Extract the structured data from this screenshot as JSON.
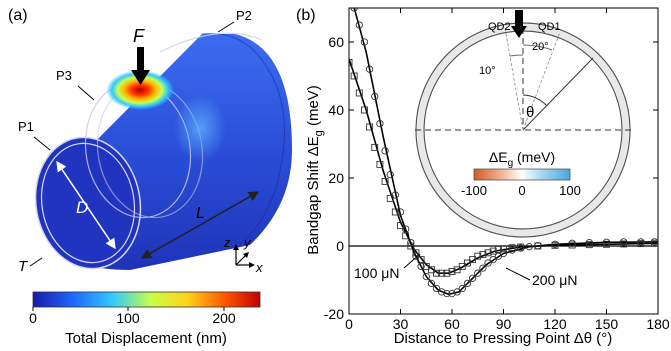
{
  "panel_a": {
    "label": "(a)",
    "force_label": "F",
    "path_labels": [
      "P1",
      "P2",
      "P3"
    ],
    "diameter_label": "D",
    "length_label": "L",
    "thickness_label": "T",
    "axes": {
      "z": "z",
      "y": "y",
      "x": "x"
    },
    "colorbar": {
      "ticks": [
        "0",
        "100",
        "200"
      ],
      "title": "Total Displacement (nm)",
      "colors": [
        "#1a1aa8",
        "#1e64ff",
        "#31c9ff",
        "#c8ff47",
        "#ffd21a",
        "#ff5a00",
        "#c40000"
      ]
    }
  },
  "panel_b": {
    "label": "(b)",
    "inset": {
      "qd_labels": [
        "QD2",
        "QD1"
      ],
      "angle_labels": [
        "20°",
        "10°",
        "θ"
      ],
      "legend_title_main": "ΔE",
      "legend_title_sub": "g",
      "legend_title_unit": " (meV)",
      "legend_ticks": [
        "-100",
        "0",
        "100"
      ],
      "legend_colors": [
        "#d45a2a",
        "#f2b89a",
        "#ffffff",
        "#a8d8f0",
        "#4aa8e0"
      ]
    },
    "annotations": [
      "100 μN",
      "200 μN"
    ]
  },
  "chart_data": {
    "type": "scatter",
    "xlabel": "Distance to Pressing Point Δθ (°)",
    "ylabel": "Bandgap Shift ΔEg (meV)",
    "ylabel_parts": {
      "main": "Bandgap Shift ΔE",
      "sub": "g",
      "unit": " (meV)"
    },
    "xlim": [
      0,
      180
    ],
    "ylim": [
      -20,
      70
    ],
    "xticks": [
      0,
      30,
      60,
      90,
      120,
      150,
      180
    ],
    "yticks": [
      -20,
      0,
      20,
      40,
      60
    ],
    "series": [
      {
        "name": "100 μN",
        "marker": "square",
        "points": [
          [
            0,
            54
          ],
          [
            3,
            50
          ],
          [
            6,
            45
          ],
          [
            9,
            40
          ],
          [
            12,
            35
          ],
          [
            15,
            29
          ],
          [
            18,
            24
          ],
          [
            21,
            19
          ],
          [
            24,
            14
          ],
          [
            27,
            10
          ],
          [
            30,
            6
          ],
          [
            33,
            3
          ],
          [
            36,
            0
          ],
          [
            39,
            -2
          ],
          [
            42,
            -4
          ],
          [
            45,
            -6
          ],
          [
            48,
            -7
          ],
          [
            51,
            -8
          ],
          [
            54,
            -8
          ],
          [
            57,
            -8
          ],
          [
            60,
            -7.5
          ],
          [
            63,
            -7
          ],
          [
            66,
            -6
          ],
          [
            69,
            -5
          ],
          [
            72,
            -4
          ],
          [
            75,
            -3
          ],
          [
            78,
            -2.5
          ],
          [
            81,
            -2
          ],
          [
            84,
            -1.5
          ],
          [
            87,
            -1
          ],
          [
            90,
            -0.8
          ],
          [
            95,
            -0.5
          ],
          [
            100,
            -0.3
          ],
          [
            110,
            0
          ],
          [
            120,
            0.2
          ],
          [
            130,
            0.3
          ],
          [
            140,
            0.4
          ],
          [
            150,
            0.5
          ],
          [
            160,
            0.6
          ],
          [
            170,
            0.7
          ],
          [
            178,
            0.8
          ]
        ],
        "fit": [
          [
            0,
            55
          ],
          [
            10,
            40
          ],
          [
            20,
            22
          ],
          [
            30,
            7
          ],
          [
            38,
            -1
          ],
          [
            45,
            -5.5
          ],
          [
            52,
            -8
          ],
          [
            58,
            -8
          ],
          [
            65,
            -6.5
          ],
          [
            75,
            -3.5
          ],
          [
            85,
            -1.5
          ],
          [
            100,
            -0.3
          ],
          [
            120,
            0.2
          ],
          [
            150,
            0.5
          ],
          [
            180,
            0.8
          ]
        ]
      },
      {
        "name": "200 μN",
        "marker": "circle",
        "points": [
          [
            3,
            70
          ],
          [
            6,
            65
          ],
          [
            9,
            60
          ],
          [
            12,
            52
          ],
          [
            15,
            44
          ],
          [
            18,
            36
          ],
          [
            21,
            28
          ],
          [
            24,
            21
          ],
          [
            27,
            15
          ],
          [
            30,
            10
          ],
          [
            33,
            5
          ],
          [
            36,
            1
          ],
          [
            39,
            -3
          ],
          [
            42,
            -6
          ],
          [
            45,
            -9
          ],
          [
            48,
            -11
          ],
          [
            51,
            -12.5
          ],
          [
            54,
            -13.5
          ],
          [
            57,
            -14
          ],
          [
            60,
            -14
          ],
          [
            63,
            -13.5
          ],
          [
            66,
            -12.5
          ],
          [
            69,
            -11
          ],
          [
            72,
            -9.5
          ],
          [
            75,
            -8
          ],
          [
            78,
            -6.5
          ],
          [
            81,
            -5
          ],
          [
            84,
            -4
          ],
          [
            87,
            -3
          ],
          [
            90,
            -2.2
          ],
          [
            95,
            -1.2
          ],
          [
            100,
            -0.6
          ],
          [
            105,
            -0.2
          ],
          [
            110,
            0.1
          ],
          [
            120,
            0.5
          ],
          [
            130,
            0.8
          ],
          [
            140,
            1
          ],
          [
            150,
            1.1
          ],
          [
            160,
            1.2
          ],
          [
            170,
            1.2
          ],
          [
            178,
            1.2
          ]
        ],
        "fit": [
          [
            2,
            72
          ],
          [
            10,
            57
          ],
          [
            20,
            32
          ],
          [
            30,
            9
          ],
          [
            38,
            -2
          ],
          [
            45,
            -9
          ],
          [
            52,
            -13
          ],
          [
            58,
            -14.2
          ],
          [
            64,
            -13.5
          ],
          [
            72,
            -9.5
          ],
          [
            80,
            -5.5
          ],
          [
            90,
            -2.2
          ],
          [
            105,
            -0.2
          ],
          [
            120,
            0.5
          ],
          [
            150,
            1.1
          ],
          [
            180,
            1.2
          ]
        ]
      }
    ]
  }
}
